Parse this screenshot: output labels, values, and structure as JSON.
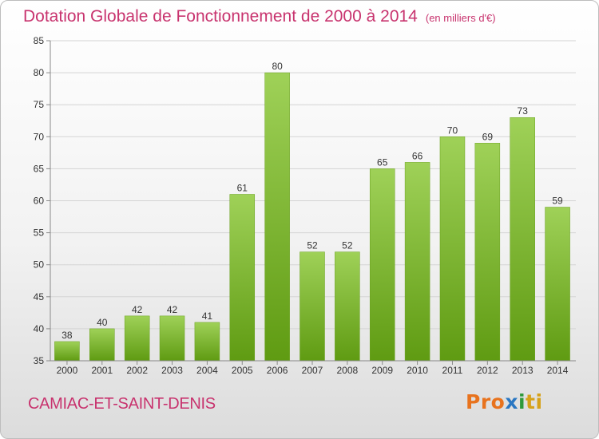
{
  "chart_data": {
    "type": "bar",
    "title": "Dotation Globale de Fonctionnement de 2000 à 2014",
    "subtitle": "(en milliers d'€)",
    "categories": [
      "2000",
      "2001",
      "2002",
      "2003",
      "2004",
      "2005",
      "2006",
      "2007",
      "2008",
      "2009",
      "2010",
      "2011",
      "2012",
      "2013",
      "2014"
    ],
    "values": [
      38,
      40,
      42,
      42,
      41,
      61,
      80,
      52,
      52,
      65,
      66,
      70,
      69,
      73,
      59
    ],
    "yticks": [
      35,
      40,
      45,
      50,
      55,
      60,
      65,
      70,
      75,
      80,
      85
    ],
    "ylim": [
      35,
      85
    ],
    "grid": true,
    "bar_color": "#8cc63f"
  },
  "footer": {
    "commune": "CAMIAC-ET-SAINT-DENIS",
    "logo": [
      "Pro",
      "x",
      "i",
      "ti"
    ]
  }
}
